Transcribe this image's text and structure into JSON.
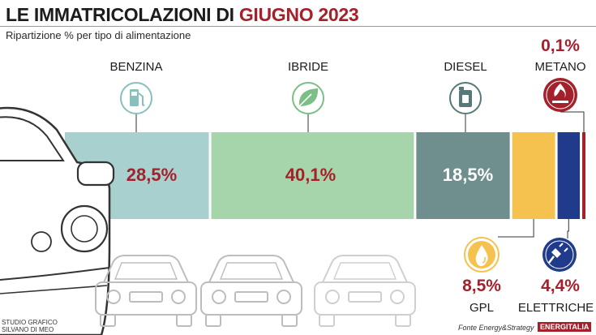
{
  "header": {
    "title_main": "LE IMMATRICOLAZIONI DI ",
    "title_highlight": "GIUGNO 2023",
    "subtitle": "Ripartizione % per tipo di alimentazione"
  },
  "chart_data": {
    "type": "bar",
    "orientation": "horizontal-stacked",
    "title": "LE IMMATRICOLAZIONI DI GIUGNO 2023",
    "subtitle": "Ripartizione % per tipo di alimentazione",
    "categories": [
      "BENZINA",
      "IBRIDE",
      "DIESEL",
      "GPL",
      "ELETTRICHE",
      "METANO"
    ],
    "values": [
      28.5,
      40.1,
      18.5,
      8.5,
      4.4,
      0.1
    ],
    "labels": [
      "28,5%",
      "40,1%",
      "18,5%",
      "8,5%",
      "4,4%",
      "0,1%"
    ],
    "colors": [
      "#a7d0cf",
      "#a6d5ac",
      "#6e8f8e",
      "#f5c24f",
      "#213b8c",
      "#a4212b"
    ],
    "unit": "%",
    "legend": "none",
    "grid": false
  },
  "icons": {
    "benzina": "fuel-pump-icon",
    "ibride": "leaf-icon",
    "diesel": "fuel-can-icon",
    "metano": "flame-icon",
    "gpl": "drop-icon",
    "elettriche": "plug-icon"
  },
  "credits": {
    "studio_line1": "STUDIO GRAFICO",
    "studio_line2": "SILVANO DI MEO",
    "fonte": "Fonte Energy&Strategy",
    "brand": "ENERGITALIA"
  }
}
